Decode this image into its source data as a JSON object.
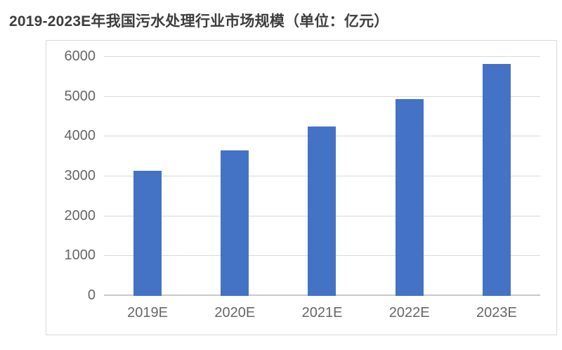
{
  "title": "2019-2023E年我国污水处理行业市场规模（单位：亿元）",
  "chart_data": {
    "type": "bar",
    "title": "2019-2023E年我国污水处理行业市场规模（单位：亿元）",
    "categories": [
      "2019E",
      "2020E",
      "2021E",
      "2022E",
      "2023E"
    ],
    "values": [
      3150,
      3650,
      4250,
      4950,
      5820
    ],
    "unit_label": "亿元",
    "xlabel": "",
    "ylabel": "",
    "ylim": [
      0,
      6000
    ],
    "yticks": [
      0,
      1000,
      2000,
      3000,
      4000,
      5000,
      6000
    ],
    "grid": true,
    "legend": "none",
    "colors": {
      "bar": "#4472C4",
      "gridline": "#D9D9D9",
      "baseline": "#C9C9C9",
      "tick_label": "#666666",
      "title_text": "#3D3D3D",
      "chart_border": "#D8D8D8",
      "background": "#FFFFFF"
    }
  }
}
